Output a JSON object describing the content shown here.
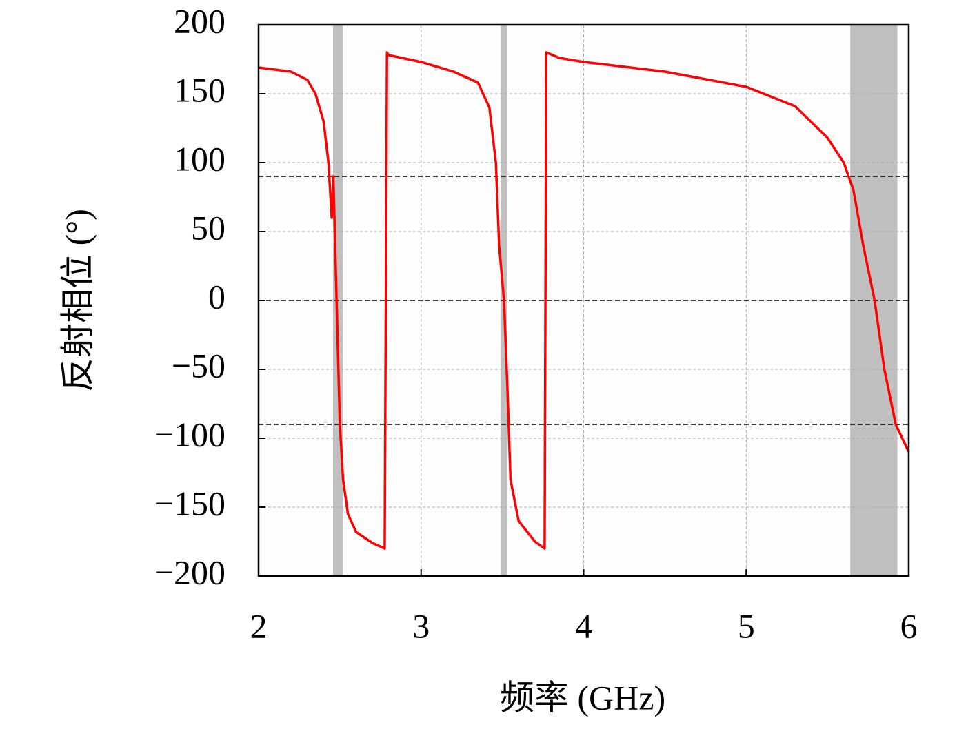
{
  "chart_data": {
    "type": "line",
    "x_label": "频率 (GHz)",
    "y_label": "反射相位 (°)",
    "x": [
      2.0,
      2.2,
      2.3,
      2.35,
      2.4,
      2.43,
      2.45,
      2.46,
      2.48,
      2.5,
      2.52,
      2.55,
      2.6,
      2.7,
      2.776,
      2.79,
      2.8,
      3.0,
      3.2,
      3.35,
      3.42,
      3.46,
      3.48,
      3.51,
      3.53,
      3.55,
      3.6,
      3.7,
      3.76,
      3.77,
      3.85,
      4.0,
      4.5,
      5.0,
      5.3,
      5.5,
      5.6,
      5.66,
      5.72,
      5.79,
      5.85,
      5.92,
      6.0
    ],
    "series": [
      {
        "color": "#ff0000",
        "values": [
          169,
          166,
          160,
          150,
          130,
          100,
          60,
          90,
          0,
          -90,
          -130,
          -155,
          -168,
          -176,
          -180,
          180,
          178,
          173,
          166,
          158,
          140,
          100,
          40,
          0,
          -60,
          -130,
          -160,
          -175,
          -180,
          180,
          176,
          173,
          166,
          155,
          141,
          118,
          100,
          80,
          40,
          0,
          -50,
          -90,
          -110
        ]
      }
    ],
    "bands": [
      [
        2.458,
        2.518
      ],
      [
        3.49,
        3.53
      ],
      [
        5.64,
        5.93
      ]
    ],
    "band_color": "#c0c0c0",
    "hlines": [
      90,
      0,
      -90
    ],
    "xlim": [
      2,
      6
    ],
    "xticks": [
      2,
      3,
      4,
      5,
      6
    ],
    "ylim": [
      -200,
      200
    ],
    "yticks": [
      {
        "value": -200,
        "label": "−200"
      },
      {
        "value": -150,
        "label": "−150"
      },
      {
        "value": -100,
        "label": "−100"
      },
      {
        "value": -50,
        "label": "−50"
      },
      0,
      50,
      100,
      150,
      200
    ],
    "grid": true
  }
}
